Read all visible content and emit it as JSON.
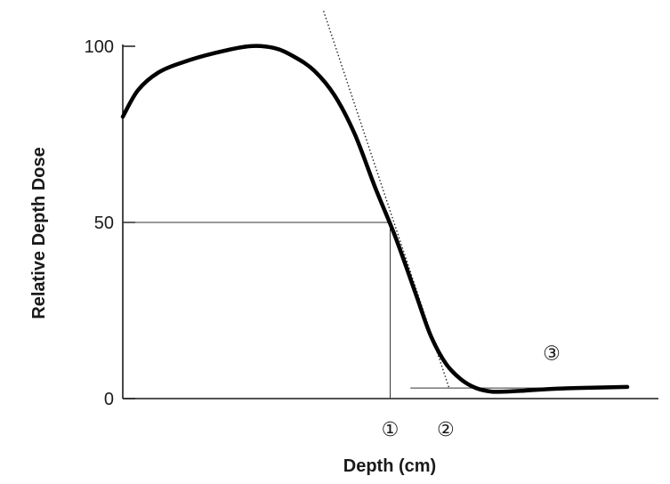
{
  "chart_data": {
    "type": "line",
    "title": "",
    "xlabel": "Depth (cm)",
    "ylabel": "Relative Depth Dose",
    "grid": false,
    "legend": "none",
    "colors": {
      "curve": "#000000",
      "axis": "#1a1a1a",
      "guide": "#333333"
    },
    "y_ticks": [
      {
        "value": 0,
        "label": "0"
      },
      {
        "value": 50,
        "label": "50"
      },
      {
        "value": 100,
        "label": "100"
      }
    ],
    "ylim": [
      0,
      100
    ],
    "xlim": [
      0,
      10
    ],
    "series": [
      {
        "x": [
          0.0,
          0.3,
          0.7,
          1.2,
          1.8,
          2.5,
          3.0,
          3.4,
          3.8,
          4.2,
          4.6,
          5.0,
          5.4,
          5.8,
          6.1,
          6.4,
          6.7,
          7.0,
          7.3,
          7.6,
          7.9,
          8.2,
          8.6,
          9.0,
          9.6,
          10.0
        ],
        "y": [
          80,
          87.5,
          92.5,
          95.5,
          98,
          100,
          99.5,
          97,
          93,
          86,
          75,
          60,
          46,
          30,
          18,
          10,
          5.5,
          3,
          2,
          2,
          2.2,
          2.5,
          2.8,
          3,
          3.2,
          3.3
        ]
      }
    ],
    "reference_point": {
      "x": 5.3,
      "y": 50
    },
    "tangent_line": {
      "x1": 3.98,
      "y1": 110,
      "x2": 6.47,
      "y2": 2.9
    },
    "background_line": {
      "x1": 5.7,
      "y1": 3,
      "x2": 9.0,
      "y2": 3
    },
    "markers": [
      {
        "label": "①",
        "x": 5.3
      },
      {
        "label": "②",
        "x": 6.4
      },
      {
        "label": "③",
        "x": 8.5,
        "y": 11
      }
    ]
  }
}
